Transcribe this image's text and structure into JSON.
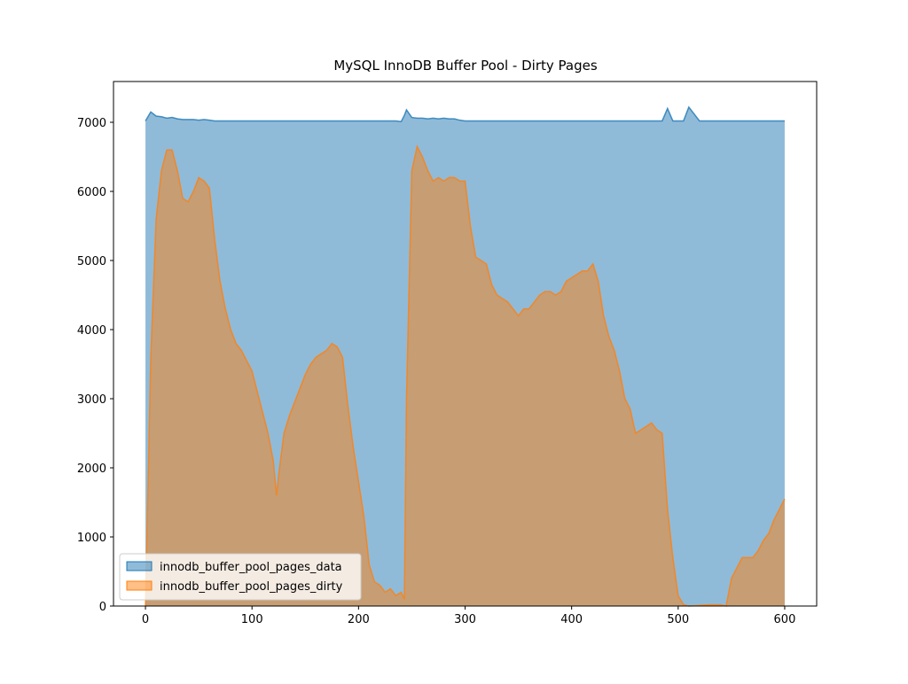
{
  "chart_data": {
    "type": "area",
    "title": "MySQL InnoDB Buffer Pool - Dirty Pages",
    "x": [
      0,
      5,
      10,
      15,
      20,
      25,
      30,
      35,
      40,
      45,
      50,
      55,
      60,
      65,
      70,
      75,
      80,
      85,
      90,
      95,
      100,
      105,
      110,
      115,
      120,
      123,
      125,
      130,
      135,
      140,
      145,
      150,
      155,
      160,
      165,
      170,
      175,
      180,
      185,
      190,
      195,
      200,
      205,
      210,
      215,
      220,
      225,
      230,
      235,
      240,
      243,
      245,
      250,
      255,
      260,
      265,
      270,
      275,
      280,
      285,
      290,
      295,
      300,
      305,
      310,
      315,
      320,
      325,
      330,
      335,
      340,
      345,
      350,
      355,
      360,
      365,
      370,
      375,
      380,
      385,
      390,
      395,
      400,
      405,
      410,
      415,
      420,
      425,
      430,
      435,
      440,
      445,
      450,
      455,
      460,
      465,
      470,
      475,
      480,
      485,
      490,
      495,
      500,
      505,
      510,
      520,
      530,
      540,
      545,
      550,
      555,
      560,
      565,
      570,
      575,
      580,
      585,
      590,
      595,
      600
    ],
    "series": [
      {
        "name": "innodb_buffer_pool_pages_data",
        "color": "#1f77b4",
        "values": [
          7020,
          7150,
          7090,
          7080,
          7060,
          7070,
          7050,
          7040,
          7040,
          7040,
          7030,
          7040,
          7030,
          7020,
          7020,
          7020,
          7020,
          7020,
          7020,
          7020,
          7020,
          7020,
          7020,
          7020,
          7020,
          7020,
          7020,
          7020,
          7020,
          7020,
          7020,
          7020,
          7020,
          7020,
          7020,
          7020,
          7020,
          7020,
          7020,
          7020,
          7020,
          7020,
          7020,
          7020,
          7020,
          7020,
          7020,
          7020,
          7020,
          7010,
          7100,
          7180,
          7070,
          7060,
          7060,
          7050,
          7060,
          7050,
          7060,
          7050,
          7050,
          7030,
          7020,
          7020,
          7020,
          7020,
          7020,
          7020,
          7020,
          7020,
          7020,
          7020,
          7020,
          7020,
          7020,
          7020,
          7020,
          7020,
          7020,
          7020,
          7020,
          7020,
          7020,
          7020,
          7020,
          7020,
          7020,
          7020,
          7020,
          7020,
          7020,
          7020,
          7020,
          7020,
          7020,
          7020,
          7020,
          7020,
          7020,
          7020,
          7200,
          7020,
          7020,
          7020,
          7220,
          7020,
          7020,
          7020,
          7020,
          7020,
          7020,
          7020,
          7020,
          7020,
          7020,
          7020,
          7020,
          7020,
          7020,
          7020
        ]
      },
      {
        "name": "innodb_buffer_pool_pages_dirty",
        "color": "#ff7f0e",
        "values": [
          0,
          3600,
          5600,
          6300,
          6600,
          6600,
          6300,
          5900,
          5850,
          6000,
          6200,
          6150,
          6050,
          5300,
          4700,
          4300,
          4000,
          3800,
          3700,
          3550,
          3400,
          3100,
          2800,
          2500,
          2100,
          1600,
          1900,
          2500,
          2750,
          2950,
          3150,
          3350,
          3500,
          3600,
          3650,
          3700,
          3800,
          3750,
          3600,
          2900,
          2300,
          1800,
          1300,
          600,
          350,
          300,
          200,
          250,
          150,
          200,
          100,
          3000,
          6300,
          6650,
          6500,
          6300,
          6150,
          6200,
          6150,
          6200,
          6200,
          6150,
          6150,
          5500,
          5050,
          5000,
          4950,
          4650,
          4500,
          4450,
          4400,
          4300,
          4200,
          4300,
          4300,
          4400,
          4500,
          4550,
          4550,
          4500,
          4550,
          4700,
          4750,
          4800,
          4850,
          4850,
          4950,
          4700,
          4200,
          3900,
          3700,
          3400,
          3000,
          2850,
          2500,
          2550,
          2600,
          2650,
          2550,
          2500,
          1400,
          700,
          150,
          20,
          0,
          10,
          20,
          20,
          0,
          400,
          550,
          700,
          700,
          700,
          800,
          950,
          1050,
          1250,
          1400,
          1550
        ]
      }
    ],
    "xlim": [
      -30,
      630
    ],
    "ylim": [
      0,
      7590
    ],
    "xticks": [
      0,
      100,
      200,
      300,
      400,
      500,
      600
    ],
    "yticks": [
      0,
      1000,
      2000,
      3000,
      4000,
      5000,
      6000,
      7000
    ],
    "legend": "lower left"
  }
}
